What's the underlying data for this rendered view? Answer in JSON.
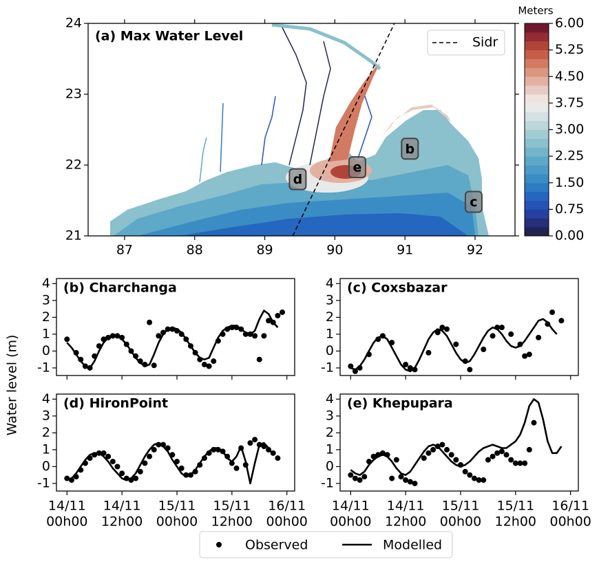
{
  "ylabel": "Water level (m)",
  "chart_data": [
    {
      "type": "map",
      "title": "(a) Max Water Level",
      "xlim": [
        86.48,
        92.57
      ],
      "ylim": [
        21,
        24
      ],
      "xticks": [
        87,
        88,
        89,
        90,
        91,
        92
      ],
      "yticks": [
        21,
        22,
        23,
        24
      ],
      "legend": "upper right",
      "series": [
        {
          "name": "Sidr",
          "color": "#000000",
          "x": [
            89.4,
            90.85
          ],
          "values": [
            21,
            24
          ]
        }
      ],
      "annotations": [
        {
          "text": "b",
          "x": 91.07,
          "y": 22.23
        },
        {
          "text": "c",
          "x": 91.98,
          "y": 21.48
        },
        {
          "text": "d",
          "x": 89.47,
          "y": 21.8
        },
        {
          "text": "e",
          "x": 90.32,
          "y": 21.97
        }
      ],
      "colorbar": {
        "label": "Meters",
        "lim": [
          0,
          6
        ],
        "ticks": [
          {
            "value": 0,
            "label": "0.00"
          },
          {
            "value": 0.75,
            "label": "0.75"
          },
          {
            "value": 1.5,
            "label": "1.50"
          },
          {
            "value": 2.25,
            "label": "2.25"
          },
          {
            "value": 3,
            "label": "3.00"
          },
          {
            "value": 3.75,
            "label": "3.75"
          },
          {
            "value": 4.5,
            "label": "4.50"
          },
          {
            "value": 5.25,
            "label": "5.25"
          },
          {
            "value": 6,
            "label": "6.00"
          }
        ],
        "colors": [
          "#1f2350",
          "#252f7a",
          "#263fa0",
          "#2453b8",
          "#2566bf",
          "#2d7bc3",
          "#3a8cc5",
          "#4b9bc6",
          "#5ea8c8",
          "#73b4ca",
          "#8bc0cd",
          "#a3cbd2",
          "#bcd6d9",
          "#d3e1e3",
          "#e8eaea",
          "#eee3df",
          "#e8cbc2",
          "#e2b1a2",
          "#db9681",
          "#d37b62",
          "#c65e48",
          "#b14438",
          "#932c33",
          "#70192c"
        ]
      }
    },
    {
      "type": "line",
      "title": "(b) Charchanga",
      "xlim": [
        -2.3,
        49.7
      ],
      "ylim": [
        -1.45,
        4.3
      ],
      "xticks": [
        0,
        12,
        24,
        36,
        48
      ],
      "yticks": [
        -1,
        0,
        1,
        2,
        3,
        4
      ],
      "x": [
        0,
        1,
        2,
        3,
        4,
        5,
        6,
        7,
        8,
        9,
        10,
        11,
        12,
        13,
        14,
        15,
        16,
        17,
        18,
        19,
        20,
        21,
        22,
        23,
        24,
        25,
        26,
        27,
        28,
        29,
        30,
        31,
        32,
        33,
        34,
        35,
        36,
        37,
        38,
        39,
        40,
        41,
        42,
        43,
        44,
        45,
        46,
        47
      ],
      "series": [
        {
          "name": "Observed",
          "mode": "markers",
          "color": "#000000",
          "values": [
            0.7,
            null,
            -0.1,
            -0.5,
            -0.9,
            -1.0,
            -0.3,
            0.3,
            0.7,
            0.8,
            0.9,
            0.9,
            0.8,
            0.4,
            0.0,
            -0.3,
            -0.6,
            -0.8,
            1.7,
            -0.85,
            0.9,
            1.1,
            1.3,
            1.3,
            1.2,
            1.0,
            0.7,
            0.3,
            -0.1,
            -0.5,
            -0.8,
            -0.9,
            -0.6,
            0.6,
            1.0,
            1.3,
            1.4,
            1.4,
            1.3,
            1.0,
            1.0,
            0.9,
            -0.5,
            0.9,
            1.8,
            1.7,
            2.1,
            2.3
          ]
        },
        {
          "name": "Modelled",
          "mode": "lines",
          "color": "#000000",
          "values": [
            0.5,
            0.2,
            -0.2,
            -0.6,
            -0.9,
            -1.0,
            -0.6,
            0.0,
            0.5,
            0.8,
            0.9,
            0.9,
            0.7,
            0.4,
            0.0,
            -0.4,
            -0.7,
            -0.9,
            -0.8,
            -0.2,
            0.5,
            1.0,
            1.3,
            1.4,
            1.3,
            1.1,
            0.7,
            0.3,
            -0.1,
            -0.4,
            -0.5,
            -0.4,
            0.2,
            0.8,
            1.2,
            1.4,
            1.5,
            1.5,
            1.3,
            1.1,
            1.0,
            1.2,
            1.9,
            2.4,
            2.2,
            1.7,
            1.4,
            null
          ]
        }
      ]
    },
    {
      "type": "line",
      "title": "(c) Coxsbazar",
      "xlim": [
        -2.3,
        49.7
      ],
      "ylim": [
        -1.45,
        4.3
      ],
      "xticks": [
        0,
        12,
        24,
        36,
        48
      ],
      "yticks": [
        -1,
        0,
        1,
        2,
        3,
        4
      ],
      "x": [
        0,
        1,
        2,
        3,
        4,
        5,
        6,
        7,
        8,
        9,
        10,
        11,
        12,
        13,
        14,
        15,
        16,
        17,
        18,
        19,
        20,
        21,
        22,
        23,
        24,
        25,
        26,
        27,
        28,
        29,
        30,
        31,
        32,
        33,
        34,
        35,
        36,
        37,
        38,
        39,
        40,
        41,
        42,
        43,
        44,
        45,
        46,
        47
      ],
      "series": [
        {
          "name": "Observed",
          "mode": "markers",
          "color": "#000000",
          "values": [
            -0.9,
            -1.2,
            -1.0,
            null,
            -0.2,
            null,
            0.7,
            0.9,
            null,
            0.5,
            null,
            null,
            -0.8,
            -1.0,
            -1.1,
            null,
            null,
            -0.1,
            null,
            1.1,
            1.4,
            1.3,
            null,
            0.4,
            null,
            -0.6,
            -1.1,
            null,
            null,
            0.1,
            null,
            0.9,
            1.4,
            1.4,
            null,
            1.0,
            null,
            0.4,
            -0.3,
            -0.2,
            null,
            0.8,
            null,
            1.6,
            2.3,
            null,
            1.8,
            null
          ]
        },
        {
          "name": "Modelled",
          "mode": "lines",
          "color": "#000000",
          "values": [
            -1.0,
            -1.1,
            -0.9,
            -0.5,
            0.0,
            0.5,
            0.8,
            0.9,
            0.7,
            0.2,
            -0.3,
            -0.8,
            -1.1,
            -1.2,
            -1.0,
            -0.5,
            0.1,
            0.7,
            1.1,
            1.3,
            1.2,
            0.9,
            0.4,
            -0.1,
            -0.5,
            -0.7,
            -0.6,
            -0.2,
            0.3,
            0.8,
            1.2,
            1.4,
            1.3,
            1.0,
            0.6,
            0.3,
            0.2,
            0.3,
            0.6,
            1.0,
            1.4,
            1.8,
            1.9,
            1.7,
            1.3,
            1.0,
            null,
            null
          ]
        }
      ]
    },
    {
      "type": "line",
      "title": "(d) HironPoint",
      "xlim": [
        -2.3,
        49.7
      ],
      "ylim": [
        -1.45,
        4.3
      ],
      "xticks": [
        {
          "value": 0,
          "label": [
            "14/11",
            "00h00"
          ]
        },
        {
          "value": 12,
          "label": [
            "14/11",
            "12h00"
          ]
        },
        {
          "value": 24,
          "label": [
            "15/11",
            "00h00"
          ]
        },
        {
          "value": 36,
          "label": [
            "15/11",
            "12h00"
          ]
        },
        {
          "value": 48,
          "label": [
            "16/11",
            "00h00"
          ]
        }
      ],
      "yticks": [
        -1,
        0,
        1,
        2,
        3,
        4
      ],
      "x": [
        0,
        1,
        2,
        3,
        4,
        5,
        6,
        7,
        8,
        9,
        10,
        11,
        12,
        13,
        14,
        15,
        16,
        17,
        18,
        19,
        20,
        21,
        22,
        23,
        24,
        25,
        26,
        27,
        28,
        29,
        30,
        31,
        32,
        33,
        34,
        35,
        36,
        37,
        38,
        39,
        40,
        41,
        42,
        43,
        44,
        45,
        46,
        47
      ],
      "series": [
        {
          "name": "Observed",
          "mode": "markers",
          "color": "#000000",
          "values": [
            -0.7,
            -0.8,
            -0.6,
            -0.2,
            0.2,
            0.5,
            0.7,
            0.8,
            0.8,
            0.6,
            0.3,
            0.0,
            -0.4,
            -0.7,
            -0.8,
            -0.7,
            -0.3,
            0.2,
            0.6,
            1.0,
            1.3,
            1.3,
            1.1,
            0.7,
            0.3,
            -0.1,
            -0.5,
            -0.5,
            -0.3,
            0.1,
            0.5,
            0.8,
            1.0,
            1.0,
            0.9,
            0.6,
            0.2,
            -0.1,
            1.1,
            0.1,
            1.4,
            1.6,
            1.3,
            1.2,
            1.0,
            0.8,
            0.5,
            null
          ]
        },
        {
          "name": "Modelled",
          "mode": "lines",
          "color": "#000000",
          "values": [
            -0.8,
            -0.7,
            -0.4,
            0.0,
            0.4,
            0.7,
            0.8,
            0.8,
            0.6,
            0.3,
            -0.1,
            -0.4,
            -0.7,
            -0.8,
            -0.7,
            -0.4,
            0.1,
            0.6,
            1.0,
            1.3,
            1.4,
            1.2,
            0.9,
            0.4,
            0.0,
            -0.4,
            -0.6,
            -0.5,
            -0.2,
            0.2,
            0.6,
            0.9,
            1.1,
            1.1,
            0.9,
            0.5,
            0.3,
            0.6,
            1.2,
            0.3,
            -1.0,
            0.2,
            1.3,
            1.4,
            1.1,
            0.7,
            null,
            null
          ]
        }
      ]
    },
    {
      "type": "line",
      "title": "(e) Khepupara",
      "xlim": [
        -2.3,
        49.7
      ],
      "ylim": [
        -1.45,
        4.3
      ],
      "xticks": [
        {
          "value": 0,
          "label": [
            "14/11",
            "00h00"
          ]
        },
        {
          "value": 12,
          "label": [
            "14/11",
            "12h00"
          ]
        },
        {
          "value": 24,
          "label": [
            "15/11",
            "00h00"
          ]
        },
        {
          "value": 36,
          "label": [
            "15/11",
            "12h00"
          ]
        },
        {
          "value": 48,
          "label": [
            "16/11",
            "00h00"
          ]
        }
      ],
      "yticks": [
        -1,
        0,
        1,
        2,
        3,
        4
      ],
      "x": [
        0,
        1,
        2,
        3,
        4,
        5,
        6,
        7,
        8,
        9,
        10,
        11,
        12,
        13,
        14,
        15,
        16,
        17,
        18,
        19,
        20,
        21,
        22,
        23,
        24,
        25,
        26,
        27,
        28,
        29,
        30,
        31,
        32,
        33,
        34,
        35,
        36,
        37,
        38,
        39,
        40,
        41,
        42,
        43,
        44,
        45,
        46,
        47
      ],
      "series": [
        {
          "name": "Observed",
          "mode": "markers",
          "color": "#000000",
          "values": [
            -0.5,
            -0.7,
            -0.8,
            -0.6,
            0.3,
            0.6,
            0.7,
            0.8,
            0.7,
            -0.7,
            0.4,
            -0.6,
            -0.8,
            -0.9,
            -1.0,
            null,
            0.5,
            0.8,
            1.0,
            1.2,
            1.3,
            1.0,
            0.7,
            0.4,
            0.1,
            -0.3,
            -0.5,
            -0.7,
            -0.8,
            -0.8,
            0.4,
            0.6,
            0.8,
            0.9,
            0.7,
            0.4,
            0.2,
            0.2,
            0.2,
            1.0,
            2.6,
            null,
            null,
            null,
            null,
            null,
            null,
            null
          ]
        },
        {
          "name": "Modelled",
          "mode": "lines",
          "color": "#000000",
          "values": [
            -0.2,
            -0.4,
            -0.5,
            -0.3,
            0.1,
            0.4,
            0.6,
            0.7,
            0.6,
            0.3,
            -0.1,
            -0.4,
            -0.5,
            -0.3,
            0.1,
            0.5,
            0.9,
            1.2,
            1.3,
            1.2,
            0.9,
            0.6,
            0.3,
            0.1,
            0.0,
            0.1,
            0.3,
            0.6,
            0.9,
            1.1,
            1.2,
            1.3,
            1.2,
            1.1,
            1.1,
            1.3,
            1.5,
            1.9,
            2.6,
            3.6,
            4.0,
            3.8,
            2.8,
            1.5,
            0.8,
            0.8,
            1.2,
            null
          ]
        }
      ]
    }
  ]
}
